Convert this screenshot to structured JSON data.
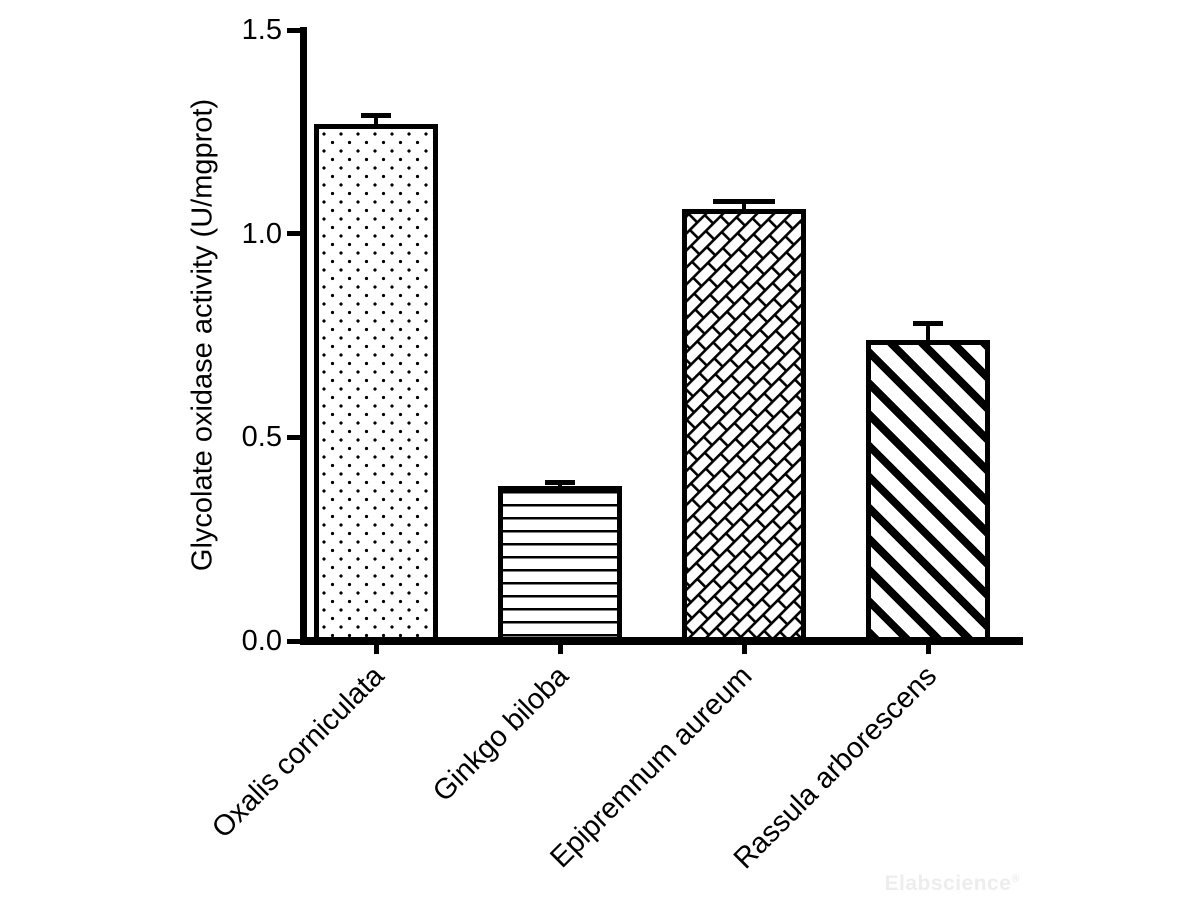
{
  "figure": {
    "background": "#ffffff",
    "ink_color": "#000000",
    "watermark": {
      "text": "Elabscience",
      "registered_mark": "®",
      "color": "#ededed"
    }
  },
  "chart_data": {
    "type": "bar",
    "title": "",
    "xlabel": "",
    "ylabel": "Glycolate oxidase activity (U/mgprot)",
    "categories": [
      "Oxalis corniculata",
      "Ginkgo biloba",
      "Epipremnum aureum",
      "Rassula arborescens"
    ],
    "values": [
      1.27,
      0.38,
      1.06,
      0.74
    ],
    "errors": [
      0.02,
      0.01,
      0.02,
      0.04
    ],
    "ylim": [
      0,
      1.5
    ],
    "yticks": [
      0,
      0.5,
      1,
      1.5
    ],
    "ytick_labels": [
      "0.0",
      "0.5",
      "1.0",
      "1.5"
    ],
    "bar_fill_color": "#ffffff",
    "bar_edge_color": "#000000",
    "bar_patterns": [
      "dots",
      "horizontal-lines",
      "diagonal-bricks",
      "diagonal-stripes"
    ],
    "error_cap_widths": [
      30,
      30,
      62,
      30
    ],
    "grid": false,
    "legend": "none",
    "x_tick_label_rotation_deg": 45
  }
}
